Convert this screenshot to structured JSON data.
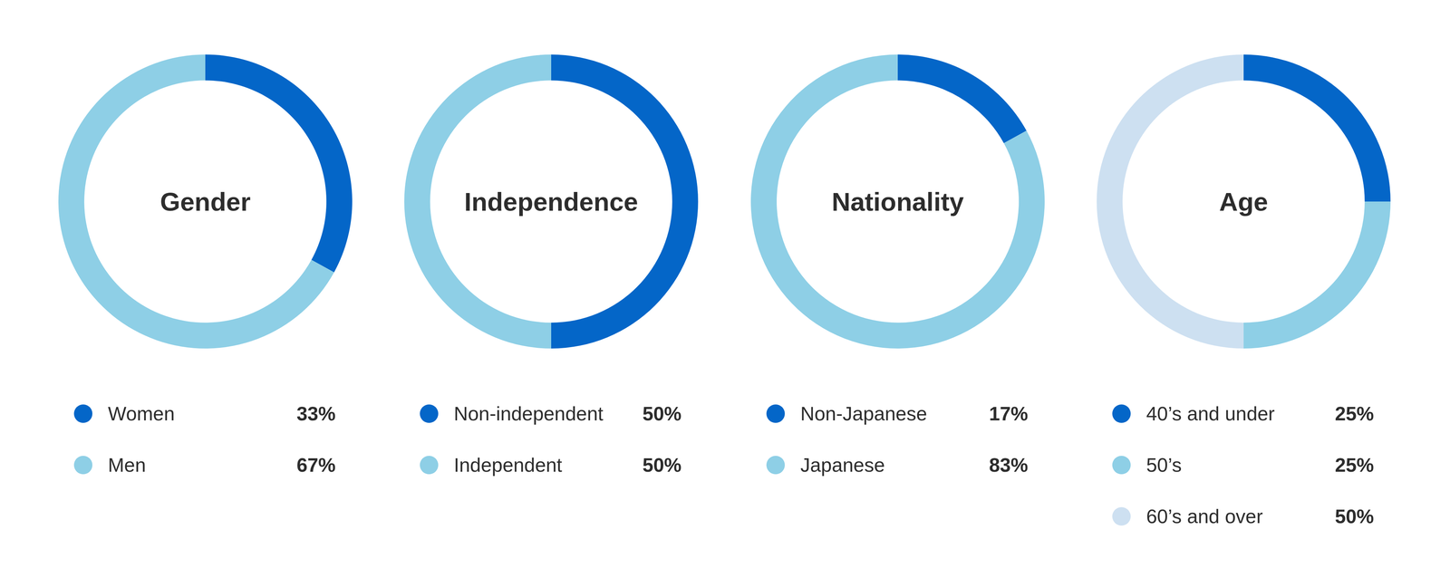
{
  "chart_data": [
    {
      "type": "donut",
      "title": "Gender",
      "categories": [
        "Women",
        "Men"
      ],
      "values": [
        33,
        67
      ],
      "value_labels": [
        "33%",
        "67%"
      ],
      "colors": [
        "#0466c8",
        "#8ecfe6"
      ],
      "legend": "bottom"
    },
    {
      "type": "donut",
      "title": "Independence",
      "categories": [
        "Non-independent",
        "Independent"
      ],
      "values": [
        50,
        50
      ],
      "value_labels": [
        "50%",
        "50%"
      ],
      "colors": [
        "#0466c8",
        "#8ecfe6"
      ],
      "legend": "bottom"
    },
    {
      "type": "donut",
      "title": "Nationality",
      "categories": [
        "Non-Japanese",
        "Japanese"
      ],
      "values": [
        17,
        83
      ],
      "value_labels": [
        "17%",
        "83%"
      ],
      "colors": [
        "#0466c8",
        "#8ecfe6"
      ],
      "legend": "bottom"
    },
    {
      "type": "donut",
      "title": "Age",
      "categories": [
        "40’s and under",
        "50’s",
        "60’s and over"
      ],
      "values": [
        25,
        25,
        50
      ],
      "value_labels": [
        "25%",
        "25%",
        "50%"
      ],
      "colors": [
        "#0466c8",
        "#8ecfe6",
        "#cde0f1"
      ],
      "legend": "bottom"
    }
  ]
}
